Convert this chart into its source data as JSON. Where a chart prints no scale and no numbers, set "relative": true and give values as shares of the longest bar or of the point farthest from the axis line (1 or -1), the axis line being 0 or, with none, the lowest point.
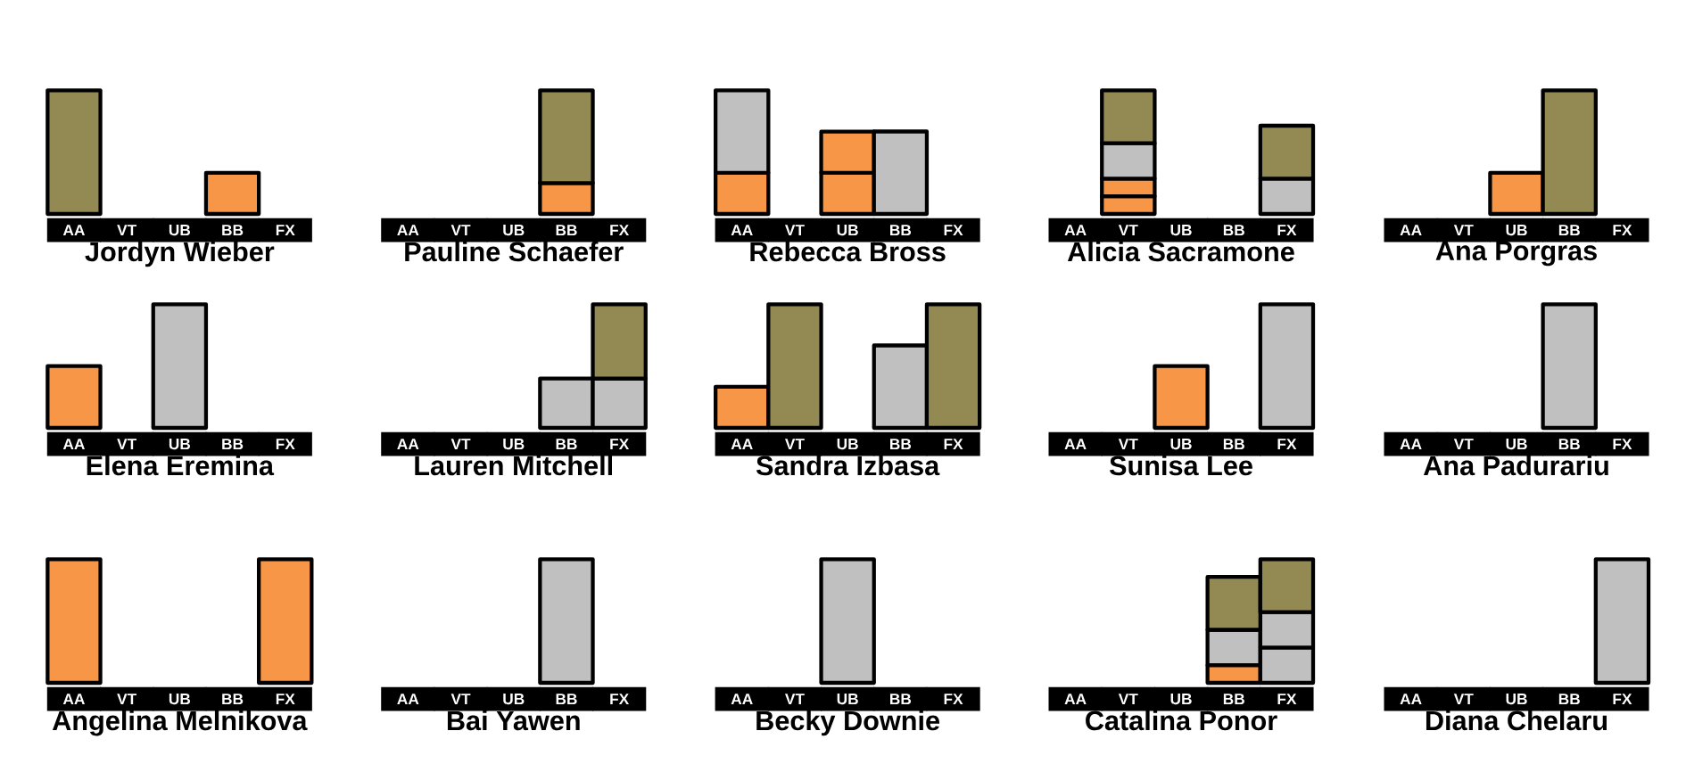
{
  "chart_data": [
    {
      "type": "bar",
      "title": "Jordyn Wieber",
      "relative": true,
      "stacked": true,
      "categories": [
        "AA",
        "VT",
        "UB",
        "BB",
        "FX"
      ],
      "series": [
        {
          "color": "#f79646",
          "values": [
            null,
            null,
            null,
            0.333,
            null
          ]
        },
        {
          "color": "#938953",
          "values": [
            1,
            null,
            null,
            null,
            null
          ]
        }
      ]
    },
    {
      "type": "bar",
      "title": "Pauline Schaefer",
      "relative": true,
      "stacked": true,
      "categories": [
        "AA",
        "VT",
        "UB",
        "BB",
        "FX"
      ],
      "series": [
        {
          "color": "#f79646",
          "values": [
            null,
            null,
            null,
            0.25,
            null
          ]
        },
        {
          "color": "#938953",
          "values": [
            null,
            null,
            null,
            0.75,
            null
          ]
        }
      ]
    },
    {
      "type": "bar",
      "title": "Rebecca Bross",
      "relative": true,
      "stacked": true,
      "categories": [
        "AA",
        "VT",
        "UB",
        "BB",
        "FX"
      ],
      "series": [
        {
          "color": "#f79646",
          "values": [
            0.333,
            null,
            0.333,
            null,
            null
          ]
        },
        {
          "color": "#f79646",
          "values": [
            null,
            null,
            0.333,
            null,
            null
          ]
        },
        {
          "color": "#c0c0c0",
          "values": [
            0.667,
            null,
            null,
            0.667,
            null
          ]
        }
      ]
    },
    {
      "type": "bar",
      "title": "Alicia Sacramone",
      "relative": true,
      "stacked": true,
      "categories": [
        "AA",
        "VT",
        "UB",
        "BB",
        "FX"
      ],
      "series": [
        {
          "color": "#f79646",
          "values": [
            null,
            0.143,
            null,
            null,
            null
          ]
        },
        {
          "color": "#f79646",
          "values": [
            null,
            0.143,
            null,
            null,
            null
          ]
        },
        {
          "color": "#c0c0c0",
          "values": [
            null,
            0.286,
            null,
            null,
            0.286
          ]
        },
        {
          "color": "#938953",
          "values": [
            null,
            0.428,
            null,
            null,
            0.428
          ]
        }
      ]
    },
    {
      "type": "bar",
      "title": "Ana Porgras",
      "relative": true,
      "stacked": true,
      "categories": [
        "AA",
        "VT",
        "UB",
        "BB",
        "FX"
      ],
      "series": [
        {
          "color": "#f79646",
          "values": [
            null,
            null,
            0.333,
            null,
            null
          ]
        },
        {
          "color": "#938953",
          "values": [
            null,
            null,
            null,
            1,
            null
          ]
        }
      ]
    },
    {
      "type": "bar",
      "title": "Elena Eremina",
      "relative": true,
      "stacked": true,
      "categories": [
        "AA",
        "VT",
        "UB",
        "BB",
        "FX"
      ],
      "series": [
        {
          "color": "#f79646",
          "values": [
            0.5,
            null,
            null,
            null,
            null
          ]
        },
        {
          "color": "#c0c0c0",
          "values": [
            null,
            null,
            1,
            null,
            null
          ]
        }
      ]
    },
    {
      "type": "bar",
      "title": "Lauren Mitchell",
      "relative": true,
      "stacked": true,
      "categories": [
        "AA",
        "VT",
        "UB",
        "BB",
        "FX"
      ],
      "series": [
        {
          "color": "#c0c0c0",
          "values": [
            null,
            null,
            null,
            0.4,
            0.4
          ]
        },
        {
          "color": "#938953",
          "values": [
            null,
            null,
            null,
            null,
            0.6
          ]
        }
      ]
    },
    {
      "type": "bar",
      "title": "Sandra Izbasa",
      "relative": true,
      "stacked": true,
      "categories": [
        "AA",
        "VT",
        "UB",
        "BB",
        "FX"
      ],
      "series": [
        {
          "color": "#f79646",
          "values": [
            0.333,
            null,
            null,
            null,
            null
          ]
        },
        {
          "color": "#c0c0c0",
          "values": [
            null,
            null,
            null,
            0.667,
            null
          ]
        },
        {
          "color": "#938953",
          "values": [
            null,
            1,
            null,
            null,
            1
          ]
        }
      ]
    },
    {
      "type": "bar",
      "title": "Sunisa Lee",
      "relative": true,
      "stacked": true,
      "categories": [
        "AA",
        "VT",
        "UB",
        "BB",
        "FX"
      ],
      "series": [
        {
          "color": "#f79646",
          "values": [
            null,
            null,
            0.5,
            null,
            null
          ]
        },
        {
          "color": "#c0c0c0",
          "values": [
            null,
            null,
            null,
            null,
            1
          ]
        }
      ]
    },
    {
      "type": "bar",
      "title": "Ana Padurariu",
      "relative": true,
      "stacked": true,
      "categories": [
        "AA",
        "VT",
        "UB",
        "BB",
        "FX"
      ],
      "series": [
        {
          "color": "#c0c0c0",
          "values": [
            null,
            null,
            null,
            1,
            null
          ]
        }
      ]
    },
    {
      "type": "bar",
      "title": "Angelina Melnikova",
      "relative": true,
      "stacked": true,
      "categories": [
        "AA",
        "VT",
        "UB",
        "BB",
        "FX"
      ],
      "series": [
        {
          "color": "#f79646",
          "values": [
            1,
            null,
            null,
            null,
            1
          ]
        }
      ]
    },
    {
      "type": "bar",
      "title": "Bai Yawen",
      "relative": true,
      "stacked": true,
      "categories": [
        "AA",
        "VT",
        "UB",
        "BB",
        "FX"
      ],
      "series": [
        {
          "color": "#c0c0c0",
          "values": [
            null,
            null,
            null,
            1,
            null
          ]
        }
      ]
    },
    {
      "type": "bar",
      "title": "Becky Downie",
      "relative": true,
      "stacked": true,
      "categories": [
        "AA",
        "VT",
        "UB",
        "BB",
        "FX"
      ],
      "series": [
        {
          "color": "#c0c0c0",
          "values": [
            null,
            null,
            1,
            null,
            null
          ]
        }
      ]
    },
    {
      "type": "bar",
      "title": "Catalina Ponor",
      "relative": true,
      "stacked": true,
      "categories": [
        "AA",
        "VT",
        "UB",
        "BB",
        "FX"
      ],
      "series": [
        {
          "color": "#f79646",
          "values": [
            null,
            null,
            null,
            0.143,
            null
          ]
        },
        {
          "color": "#c0c0c0",
          "values": [
            null,
            null,
            null,
            0.286,
            0.286
          ]
        },
        {
          "color": "#c0c0c0",
          "values": [
            null,
            null,
            null,
            null,
            0.286
          ]
        },
        {
          "color": "#938953",
          "values": [
            null,
            null,
            null,
            0.428,
            0.428
          ]
        }
      ]
    },
    {
      "type": "bar",
      "title": "Diana Chelaru",
      "relative": true,
      "stacked": true,
      "categories": [
        "AA",
        "VT",
        "UB",
        "BB",
        "FX"
      ],
      "series": [
        {
          "color": "#c0c0c0",
          "values": [
            null,
            null,
            null,
            null,
            1
          ]
        }
      ]
    }
  ]
}
